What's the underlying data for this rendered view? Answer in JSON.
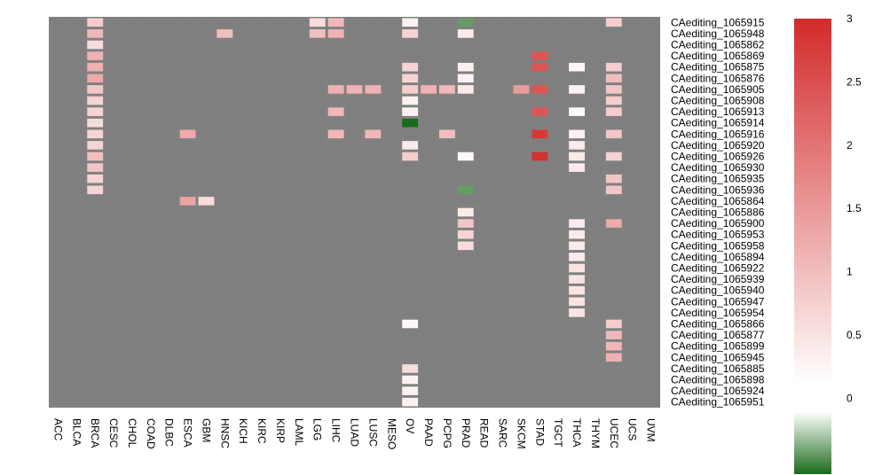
{
  "chart_data": {
    "type": "heatmap",
    "title": "",
    "xlabel": "",
    "ylabel": "",
    "colors": {
      "background": "#808080",
      "cell_empty": "#7f7f7f",
      "high": "#d32a2a",
      "mid": "#ffffff",
      "low": "#1a6b1a"
    },
    "columns": [
      "ACC",
      "BLCA",
      "BRCA",
      "CESC",
      "CHOL",
      "COAD",
      "DLBC",
      "ESCA",
      "GBM",
      "HNSC",
      "KICH",
      "KIRC",
      "KIRP",
      "LAML",
      "LGG",
      "LIHC",
      "LUAD",
      "LUSC",
      "MESO",
      "OV",
      "PAAD",
      "PCPG",
      "PRAD",
      "READ",
      "SARC",
      "SKCM",
      "STAD",
      "TGCT",
      "THCA",
      "THYM",
      "UCEC",
      "UCS",
      "UVM"
    ],
    "rows": [
      "CAediting_1065915",
      "CAediting_1065948",
      "CAediting_1065862",
      "CAediting_1065869",
      "CAediting_1065875",
      "CAediting_1065876",
      "CAediting_1065905",
      "CAediting_1065908",
      "CAediting_1065913",
      "CAediting_1065914",
      "CAediting_1065916",
      "CAediting_1065920",
      "CAediting_1065926",
      "CAediting_1065930",
      "CAediting_1065935",
      "CAediting_1065936",
      "CAediting_1065864",
      "CAediting_1065886",
      "CAediting_1065900",
      "CAediting_1065953",
      "CAediting_1065958",
      "CAediting_1065894",
      "CAediting_1065922",
      "CAediting_1065939",
      "CAediting_1065940",
      "CAediting_1065947",
      "CAediting_1065954",
      "CAediting_1065866",
      "CAediting_1065877",
      "CAediting_1065899",
      "CAediting_1065945",
      "CAediting_1065885",
      "CAediting_1065898",
      "CAediting_1065924",
      "CAediting_1065951"
    ],
    "cells": [
      {
        "row": "CAediting_1065915",
        "col": "BRCA",
        "value": 0.7
      },
      {
        "row": "CAediting_1065915",
        "col": "LGG",
        "value": 0.5
      },
      {
        "row": "CAediting_1065915",
        "col": "LIHC",
        "value": 1.0
      },
      {
        "row": "CAediting_1065915",
        "col": "OV",
        "value": 0.2
      },
      {
        "row": "CAediting_1065915",
        "col": "PRAD",
        "value": -0.4
      },
      {
        "row": "CAediting_1065915",
        "col": "UCEC",
        "value": 0.7
      },
      {
        "row": "CAediting_1065948",
        "col": "BRCA",
        "value": 1.0
      },
      {
        "row": "CAediting_1065948",
        "col": "HNSC",
        "value": 0.9
      },
      {
        "row": "CAediting_1065948",
        "col": "LGG",
        "value": 0.9
      },
      {
        "row": "CAediting_1065948",
        "col": "LIHC",
        "value": 1.1
      },
      {
        "row": "CAediting_1065948",
        "col": "OV",
        "value": 0.6
      },
      {
        "row": "CAediting_1065948",
        "col": "PRAD",
        "value": 0.3
      },
      {
        "row": "CAediting_1065862",
        "col": "BRCA",
        "value": 0.5
      },
      {
        "row": "CAediting_1065869",
        "col": "BRCA",
        "value": 1.1
      },
      {
        "row": "CAediting_1065869",
        "col": "STAD",
        "value": 2.4
      },
      {
        "row": "CAediting_1065875",
        "col": "BRCA",
        "value": 1.1
      },
      {
        "row": "CAediting_1065875",
        "col": "OV",
        "value": 0.6
      },
      {
        "row": "CAediting_1065875",
        "col": "PRAD",
        "value": 0.2
      },
      {
        "row": "CAediting_1065875",
        "col": "STAD",
        "value": 2.4
      },
      {
        "row": "CAediting_1065875",
        "col": "THCA",
        "value": 0.1
      },
      {
        "row": "CAediting_1065875",
        "col": "UCEC",
        "value": 0.7
      },
      {
        "row": "CAediting_1065876",
        "col": "BRCA",
        "value": 1.2
      },
      {
        "row": "CAediting_1065876",
        "col": "OV",
        "value": 0.6
      },
      {
        "row": "CAediting_1065876",
        "col": "PRAD",
        "value": 0.2
      },
      {
        "row": "CAediting_1065876",
        "col": "UCEC",
        "value": 0.9
      },
      {
        "row": "CAediting_1065905",
        "col": "BRCA",
        "value": 0.8
      },
      {
        "row": "CAediting_1065905",
        "col": "LIHC",
        "value": 1.1
      },
      {
        "row": "CAediting_1065905",
        "col": "LUAD",
        "value": 1.1
      },
      {
        "row": "CAediting_1065905",
        "col": "LUSC",
        "value": 1.1
      },
      {
        "row": "CAediting_1065905",
        "col": "OV",
        "value": 0.7
      },
      {
        "row": "CAediting_1065905",
        "col": "PAAD",
        "value": 1.1
      },
      {
        "row": "CAediting_1065905",
        "col": "PCPG",
        "value": 1.0
      },
      {
        "row": "CAediting_1065905",
        "col": "PRAD",
        "value": 0.3
      },
      {
        "row": "CAediting_1065905",
        "col": "SKCM",
        "value": 1.4
      },
      {
        "row": "CAediting_1065905",
        "col": "STAD",
        "value": 2.4
      },
      {
        "row": "CAediting_1065905",
        "col": "THCA",
        "value": 0.2
      },
      {
        "row": "CAediting_1065905",
        "col": "UCEC",
        "value": 0.8
      },
      {
        "row": "CAediting_1065908",
        "col": "BRCA",
        "value": 0.6
      },
      {
        "row": "CAediting_1065908",
        "col": "OV",
        "value": 0.2
      },
      {
        "row": "CAediting_1065908",
        "col": "UCEC",
        "value": 0.7
      },
      {
        "row": "CAediting_1065913",
        "col": "BRCA",
        "value": 0.6
      },
      {
        "row": "CAediting_1065913",
        "col": "LIHC",
        "value": 1.0
      },
      {
        "row": "CAediting_1065913",
        "col": "OV",
        "value": 0.2
      },
      {
        "row": "CAediting_1065913",
        "col": "STAD",
        "value": 2.4
      },
      {
        "row": "CAediting_1065913",
        "col": "THCA",
        "value": 0.1
      },
      {
        "row": "CAediting_1065913",
        "col": "UCEC",
        "value": 0.7
      },
      {
        "row": "CAediting_1065914",
        "col": "BRCA",
        "value": 0.5
      },
      {
        "row": "CAediting_1065914",
        "col": "OV",
        "value": -1.2
      },
      {
        "row": "CAediting_1065916",
        "col": "BRCA",
        "value": 0.6
      },
      {
        "row": "CAediting_1065916",
        "col": "ESCA",
        "value": 1.2
      },
      {
        "row": "CAediting_1065916",
        "col": "LIHC",
        "value": 1.0
      },
      {
        "row": "CAediting_1065916",
        "col": "LUSC",
        "value": 1.0
      },
      {
        "row": "CAediting_1065916",
        "col": "PCPG",
        "value": 0.9
      },
      {
        "row": "CAediting_1065916",
        "col": "STAD",
        "value": 2.8
      },
      {
        "row": "CAediting_1065916",
        "col": "THCA",
        "value": 0.2
      },
      {
        "row": "CAediting_1065916",
        "col": "UCEC",
        "value": 0.8
      },
      {
        "row": "CAediting_1065920",
        "col": "BRCA",
        "value": 0.6
      },
      {
        "row": "CAediting_1065920",
        "col": "OV",
        "value": 0.3
      },
      {
        "row": "CAediting_1065920",
        "col": "THCA",
        "value": 0.3
      },
      {
        "row": "CAediting_1065926",
        "col": "BRCA",
        "value": 0.9
      },
      {
        "row": "CAediting_1065926",
        "col": "OV",
        "value": 0.7
      },
      {
        "row": "CAediting_1065926",
        "col": "PRAD",
        "value": 0.1
      },
      {
        "row": "CAediting_1065926",
        "col": "STAD",
        "value": 2.9
      },
      {
        "row": "CAediting_1065926",
        "col": "THCA",
        "value": 0.3
      },
      {
        "row": "CAediting_1065926",
        "col": "UCEC",
        "value": 0.6
      },
      {
        "row": "CAediting_1065930",
        "col": "BRCA",
        "value": 0.8
      },
      {
        "row": "CAediting_1065930",
        "col": "THCA",
        "value": 0.3
      },
      {
        "row": "CAediting_1065935",
        "col": "BRCA",
        "value": 0.6
      },
      {
        "row": "CAediting_1065935",
        "col": "UCEC",
        "value": 0.8
      },
      {
        "row": "CAediting_1065936",
        "col": "BRCA",
        "value": 0.6
      },
      {
        "row": "CAediting_1065936",
        "col": "PRAD",
        "value": -0.4
      },
      {
        "row": "CAediting_1065936",
        "col": "UCEC",
        "value": 0.8
      },
      {
        "row": "CAediting_1065864",
        "col": "ESCA",
        "value": 1.3
      },
      {
        "row": "CAediting_1065864",
        "col": "GBM",
        "value": 0.5
      },
      {
        "row": "CAediting_1065886",
        "col": "PRAD",
        "value": 0.3
      },
      {
        "row": "CAediting_1065900",
        "col": "PRAD",
        "value": 0.8
      },
      {
        "row": "CAediting_1065900",
        "col": "THCA",
        "value": 0.3
      },
      {
        "row": "CAediting_1065900",
        "col": "UCEC",
        "value": 1.2
      },
      {
        "row": "CAediting_1065953",
        "col": "PRAD",
        "value": 0.6
      },
      {
        "row": "CAediting_1065953",
        "col": "THCA",
        "value": 0.3
      },
      {
        "row": "CAediting_1065958",
        "col": "PRAD",
        "value": 0.5
      },
      {
        "row": "CAediting_1065958",
        "col": "THCA",
        "value": 0.3
      },
      {
        "row": "CAediting_1065894",
        "col": "THCA",
        "value": 0.3
      },
      {
        "row": "CAediting_1065922",
        "col": "THCA",
        "value": 0.4
      },
      {
        "row": "CAediting_1065939",
        "col": "THCA",
        "value": 0.4
      },
      {
        "row": "CAediting_1065940",
        "col": "THCA",
        "value": 0.4
      },
      {
        "row": "CAediting_1065947",
        "col": "THCA",
        "value": 0.4
      },
      {
        "row": "CAediting_1065954",
        "col": "THCA",
        "value": 0.4
      },
      {
        "row": "CAediting_1065866",
        "col": "OV",
        "value": 0.1
      },
      {
        "row": "CAediting_1065866",
        "col": "UCEC",
        "value": 0.7
      },
      {
        "row": "CAediting_1065877",
        "col": "UCEC",
        "value": 1.0
      },
      {
        "row": "CAediting_1065899",
        "col": "UCEC",
        "value": 1.0
      },
      {
        "row": "CAediting_1065945",
        "col": "UCEC",
        "value": 1.1
      },
      {
        "row": "CAediting_1065885",
        "col": "OV",
        "value": 0.5
      },
      {
        "row": "CAediting_1065898",
        "col": "OV",
        "value": 0.2
      },
      {
        "row": "CAediting_1065924",
        "col": "OV",
        "value": 0.2
      },
      {
        "row": "CAediting_1065951",
        "col": "OV",
        "value": 0.2
      }
    ],
    "legend": {
      "placement": "right",
      "min": -0.6,
      "max": 3,
      "ticks": [
        "0",
        "0.5",
        "1",
        "1.5",
        "2",
        "2.5",
        "3"
      ]
    }
  }
}
